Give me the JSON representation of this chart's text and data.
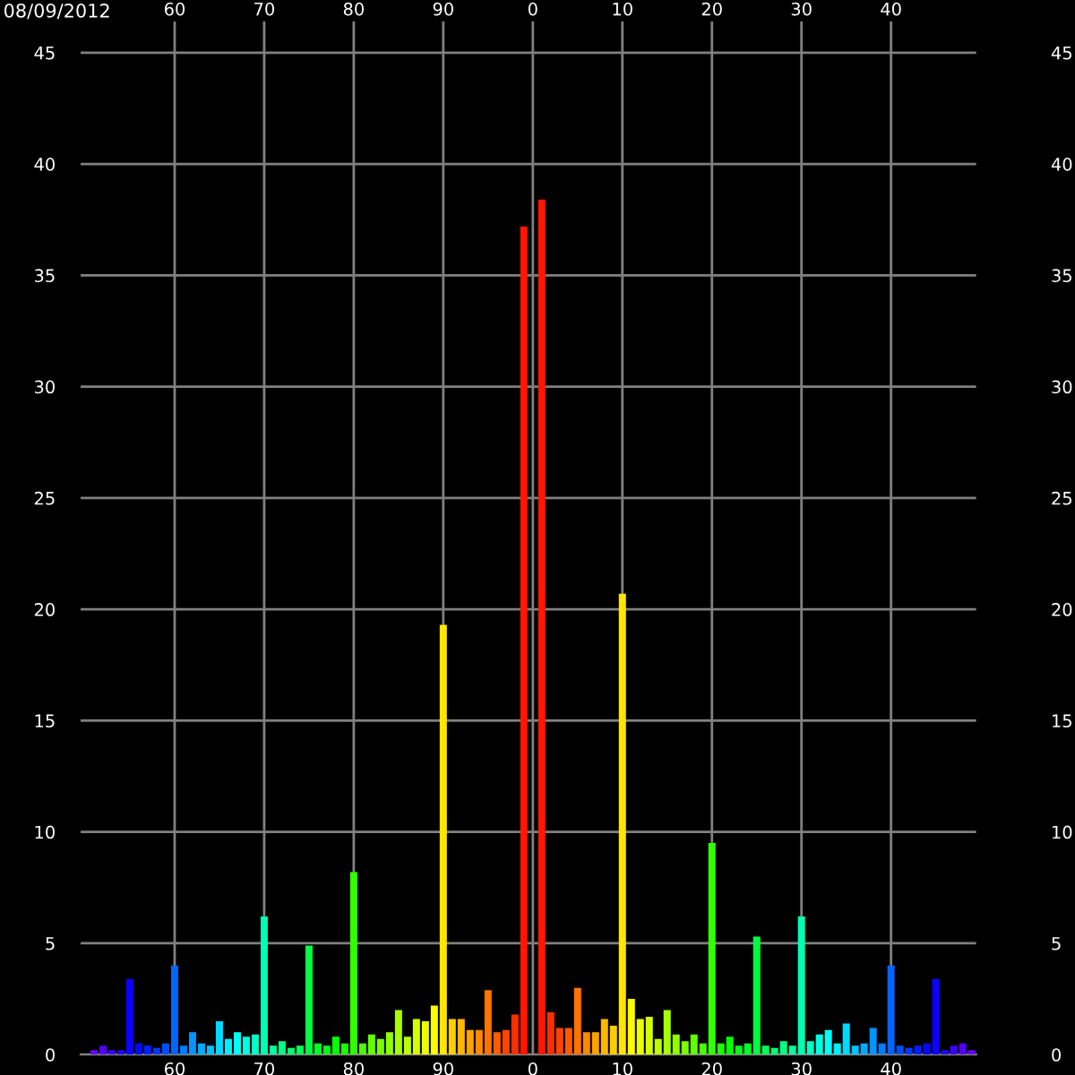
{
  "chart_data": {
    "type": "bar",
    "title": "08/09/2012",
    "categories": [
      null,
      null,
      null,
      null,
      null,
      null,
      null,
      null,
      null,
      null,
      "60",
      null,
      null,
      null,
      null,
      null,
      null,
      null,
      null,
      null,
      "70",
      null,
      null,
      null,
      null,
      null,
      null,
      null,
      null,
      null,
      "80",
      null,
      null,
      null,
      null,
      null,
      null,
      null,
      null,
      null,
      "90",
      null,
      null,
      null,
      null,
      null,
      null,
      null,
      null,
      null,
      "0",
      null,
      null,
      null,
      null,
      null,
      null,
      null,
      null,
      null,
      "10",
      null,
      null,
      null,
      null,
      null,
      null,
      null,
      null,
      null,
      "20",
      null,
      null,
      null,
      null,
      null,
      null,
      null,
      null,
      null,
      "30",
      null,
      null,
      null,
      null,
      null,
      null,
      null,
      null,
      null,
      "40",
      null,
      null,
      null,
      null,
      null,
      null,
      null,
      null,
      null
    ],
    "values": [
      0,
      0.2,
      0.4,
      0.2,
      0.2,
      3.4,
      0.5,
      0.4,
      0.3,
      0.5,
      4.0,
      0.4,
      1.0,
      0.5,
      0.4,
      1.5,
      0.7,
      1.0,
      0.8,
      0.9,
      6.2,
      0.4,
      0.6,
      0.3,
      0.4,
      4.9,
      0.5,
      0.4,
      0.8,
      0.5,
      8.2,
      0.5,
      0.9,
      0.7,
      1.0,
      2.0,
      0.8,
      1.6,
      1.5,
      2.2,
      19.3,
      1.6,
      1.6,
      1.1,
      1.1,
      2.9,
      1.0,
      1.1,
      1.8,
      37.2,
      0,
      38.4,
      1.9,
      1.2,
      1.2,
      3.0,
      1.0,
      1.0,
      1.6,
      1.3,
      20.7,
      2.5,
      1.6,
      1.7,
      0.7,
      2.0,
      0.9,
      0.6,
      0.9,
      0.5,
      9.5,
      0.5,
      0.8,
      0.4,
      0.5,
      5.3,
      0.4,
      0.3,
      0.6,
      0.4,
      6.2,
      0.6,
      0.9,
      1.1,
      0.5,
      1.4,
      0.4,
      0.5,
      1.2,
      0.5,
      4.0,
      0.4,
      0.3,
      0.4,
      0.5,
      3.4,
      0.2,
      0.4,
      0.5,
      0.2
    ],
    "colors": [
      "#8000ff",
      "#6900ff",
      "#5200ff",
      "#3b00ff",
      "#2400ff",
      "#0d00ff",
      "#000aff",
      "#0021ff",
      "#0038ff",
      "#004fff",
      "#0066ff",
      "#007dff",
      "#0094ff",
      "#00abff",
      "#00c2ff",
      "#00d9ff",
      "#00f0ff",
      "#00fff7",
      "#00ffe0",
      "#00ffc9",
      "#00ffb3",
      "#00ff9c",
      "#00ff85",
      "#00ff6e",
      "#00ff57",
      "#00ff40",
      "#00ff29",
      "#00ff12",
      "#05ff00",
      "#1cff00",
      "#33ff00",
      "#4aff00",
      "#61ff00",
      "#78ff00",
      "#8fff00",
      "#a6ff00",
      "#bdff00",
      "#d4ff00",
      "#ebff00",
      "#fffc00",
      "#ffe500",
      "#ffce00",
      "#ffb700",
      "#ffa100",
      "#ff8a00",
      "#ff7300",
      "#ff5c00",
      "#ff4500",
      "#ff2e00",
      "#ff1700",
      "#ff0000",
      "#ff1700",
      "#ff2e00",
      "#ff4500",
      "#ff5c00",
      "#ff7300",
      "#ff8a00",
      "#ffa100",
      "#ffb700",
      "#ffce00",
      "#ffe500",
      "#fffc00",
      "#ebff00",
      "#d4ff00",
      "#bdff00",
      "#a6ff00",
      "#8fff00",
      "#78ff00",
      "#61ff00",
      "#4aff00",
      "#33ff00",
      "#1cff00",
      "#05ff00",
      "#00ff12",
      "#00ff29",
      "#00ff40",
      "#00ff57",
      "#00ff6e",
      "#00ff85",
      "#00ff9c",
      "#00ffb3",
      "#00ffc9",
      "#00ffe0",
      "#00fff7",
      "#00f0ff",
      "#00d9ff",
      "#00c2ff",
      "#00abff",
      "#0094ff",
      "#007dff",
      "#0066ff",
      "#004fff",
      "#0038ff",
      "#0021ff",
      "#000aff",
      "#0d00ff",
      "#2400ff",
      "#3b00ff",
      "#5200ff",
      "#6900ff"
    ],
    "ylim": [
      0,
      46.4
    ],
    "yticks": [
      0,
      5,
      10,
      15,
      20,
      25,
      30,
      35,
      40,
      45
    ],
    "y2lim": [
      0,
      46.4
    ],
    "y2ticks": [
      0,
      5,
      10,
      15,
      20,
      25,
      30,
      35,
      40,
      45
    ],
    "grid": true
  }
}
